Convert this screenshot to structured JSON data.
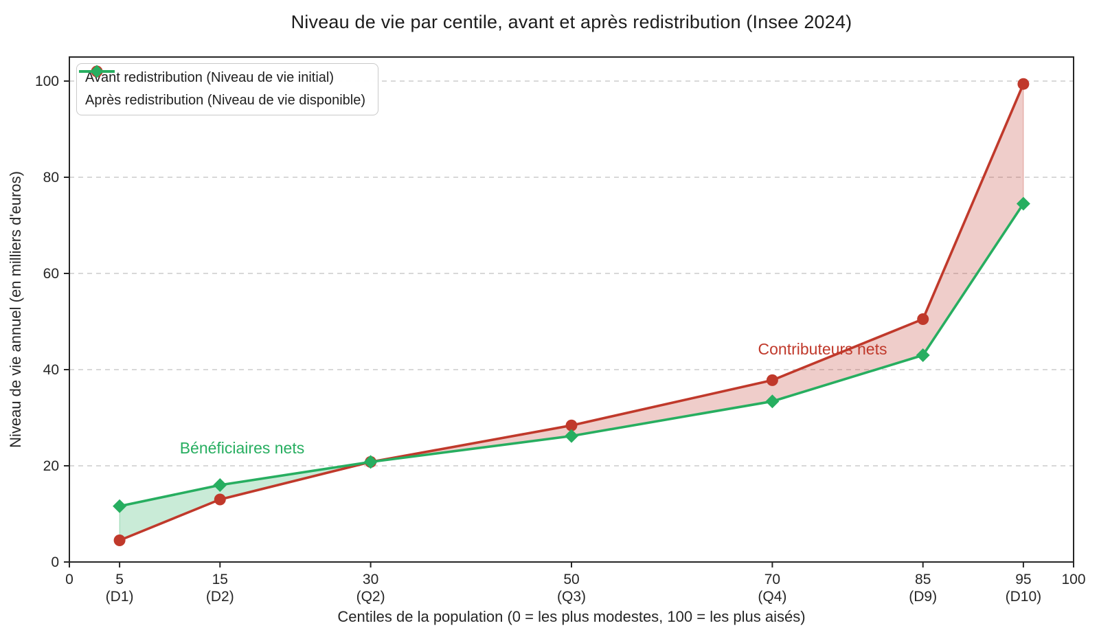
{
  "chart_data": {
    "type": "line",
    "title": "Niveau de vie par centile, avant et après redistribution (Insee 2024)",
    "xlabel": "Centiles de la population (0 = les plus modestes, 100 = les plus aisés)",
    "ylabel": "Niveau de vie annuel (en milliers d'euros)",
    "xlim": [
      0,
      100
    ],
    "ylim": [
      0,
      105
    ],
    "grid": "horizontal-dashed",
    "legend_position": "upper-left",
    "x": [
      5,
      15,
      30,
      50,
      70,
      85,
      95
    ],
    "x_ticks": [
      {
        "value": 0,
        "label": "0",
        "sublabel": ""
      },
      {
        "value": 5,
        "label": "5",
        "sublabel": "(D1)"
      },
      {
        "value": 15,
        "label": "15",
        "sublabel": "(D2)"
      },
      {
        "value": 30,
        "label": "30",
        "sublabel": "(Q2)"
      },
      {
        "value": 50,
        "label": "50",
        "sublabel": "(Q3)"
      },
      {
        "value": 70,
        "label": "70",
        "sublabel": "(Q4)"
      },
      {
        "value": 85,
        "label": "85",
        "sublabel": "(D9)"
      },
      {
        "value": 95,
        "label": "95",
        "sublabel": "(D10)"
      },
      {
        "value": 100,
        "label": "100",
        "sublabel": ""
      }
    ],
    "y_ticks": [
      {
        "value": 0,
        "label": "0"
      },
      {
        "value": 20,
        "label": "20"
      },
      {
        "value": 40,
        "label": "40"
      },
      {
        "value": 60,
        "label": "60"
      },
      {
        "value": 80,
        "label": "80"
      },
      {
        "value": 100,
        "label": "100"
      }
    ],
    "series": [
      {
        "name": "Avant redistribution (Niveau de vie initial)",
        "marker": "circle",
        "color": "#c0392b",
        "values": [
          4.5,
          13.0,
          20.8,
          28.4,
          37.8,
          50.5,
          99.4
        ]
      },
      {
        "name": "Après redistribution (Niveau de vie disponible)",
        "marker": "diamond",
        "color": "#27ae60",
        "values": [
          11.6,
          16.0,
          20.8,
          26.2,
          33.4,
          43.0,
          74.5
        ]
      }
    ],
    "fill_between": {
      "opacity": 0.25,
      "edge_opacity": 0.4
    },
    "annotations": [
      {
        "text": "Bénéficiaires nets",
        "x": 17.2,
        "y": 23.7,
        "color": "#27ae60"
      },
      {
        "text": "Contributeurs nets",
        "x": 75.0,
        "y": 44.3,
        "color": "#c0392b"
      }
    ],
    "colors": {
      "grid": "#cccccc",
      "axis": "#262626",
      "text": "#262626",
      "background": "#ffffff"
    }
  }
}
